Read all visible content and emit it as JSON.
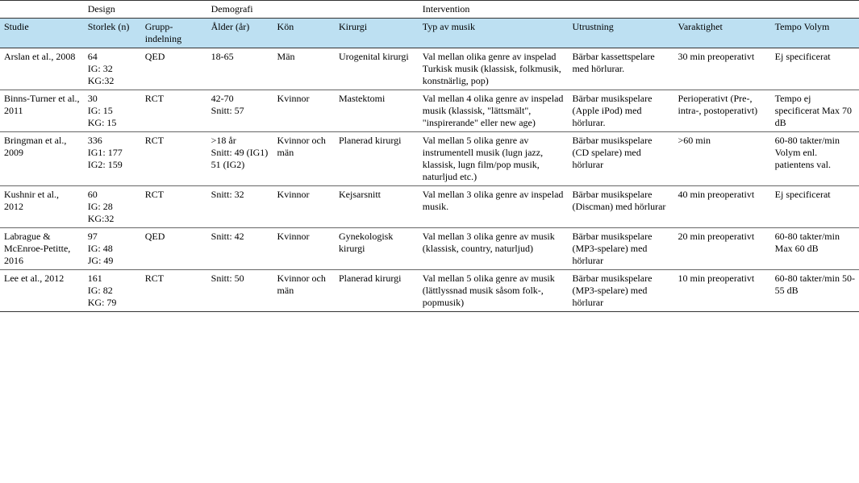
{
  "groupHeaders": {
    "design": "Design",
    "demografi": "Demografi",
    "intervention": "Intervention"
  },
  "colHeaders": {
    "studie": "Studie",
    "storlek": " Storlek (n)",
    "grupp": "Grupp-indelning",
    "alder": "Ålder (år)",
    "kon": "Kön",
    "kirurgi": "Kirurgi",
    "typ": "Typ av musik",
    "utrustning": "Utrustning",
    "varaktighet": "Varaktighet",
    "tempo": "Tempo Volym"
  },
  "rows": [
    {
      "studie": "Arslan et al., 2008",
      "storlek": "64\nIG: 32\nKG:32",
      "grupp": "QED",
      "alder": "18-65",
      "kon": "Män",
      "kirurgi": "Urogenital kirurgi",
      "typ": "Val mellan olika genre av inspelad Turkisk musik (klassisk, folkmusik, konstnärlig, pop)",
      "utrustning": "Bärbar kassettspelare med hörlurar.",
      "varaktighet": "30 min preoperativt",
      "tempo": "Ej specificerat"
    },
    {
      "studie": "Binns-Turner et al., 2011",
      "storlek": "30\nIG: 15\nKG: 15",
      "grupp": "RCT",
      "alder": "42-70\nSnitt: 57",
      "kon": "Kvinnor",
      "kirurgi": "Mastektomi",
      "typ": "Val mellan 4 olika genre av inspelad musik (klassisk, \"lättsmält\", \"inspirerande\" eller new age)",
      "utrustning": "Bärbar musikspelare (Apple iPod) med hörlurar.",
      "varaktighet": "Perioperativt (Pre-, intra-, postoperativt)",
      "tempo": "Tempo ej specificerat Max 70 dB"
    },
    {
      "studie": "Bringman et al., 2009",
      "storlek": "336\nIG1: 177\nIG2: 159",
      "grupp": "RCT",
      "alder": ">18 år\nSnitt: 49 (IG1)\n51 (IG2)",
      "kon": "Kvinnor och män",
      "kirurgi": "Planerad kirurgi",
      "typ": "Val mellan 5 olika genre av instrumentell musik (lugn jazz, klassisk, lugn film/pop musik, naturljud etc.)",
      "utrustning": "Bärbar musikspelare (CD spelare) med hörlurar",
      "varaktighet": ">60 min",
      "tempo": "60-80 takter/min Volym enl. patientens val."
    },
    {
      "studie": "Kushnir et al., 2012",
      "storlek": "60\nIG: 28\nKG:32",
      "grupp": "RCT",
      "alder": "Snitt: 32",
      "kon": "Kvinnor",
      "kirurgi": "Kejsarsnitt",
      "typ": "Val mellan 3 olika genre av inspelad musik.",
      "utrustning": "Bärbar musikspelare (Discman) med hörlurar",
      "varaktighet": "40 min preoperativt",
      "tempo": "Ej specificerat"
    },
    {
      "studie": "Labrague & McEnroe-Petitte, 2016",
      "storlek": "97\nIG: 48\nJG: 49",
      "grupp": "QED",
      "alder": "Snitt: 42",
      "kon": "Kvinnor",
      "kirurgi": "Gynekologisk kirurgi",
      "typ": "Val mellan 3 olika genre av musik (klassisk, country, naturljud)",
      "utrustning": "Bärbar musikspelare (MP3-spelare) med hörlurar",
      "varaktighet": "20 min preoperativt",
      "tempo": "60-80 takter/min Max 60 dB"
    },
    {
      "studie": "Lee et al., 2012",
      "storlek": "161\nIG: 82\nKG: 79",
      "grupp": "RCT",
      "alder": "Snitt: 50",
      "kon": "Kvinnor och män",
      "kirurgi": "Planerad kirurgi",
      "typ": "Val mellan 5 olika genre av musik (lättlyssnad musik såsom folk-, popmusik)",
      "utrustning": "Bärbar musikspelare (MP3-spelare) med hörlurar",
      "varaktighet": "10 min preoperativt",
      "tempo": "60-80 takter/min 50-55 dB"
    }
  ]
}
